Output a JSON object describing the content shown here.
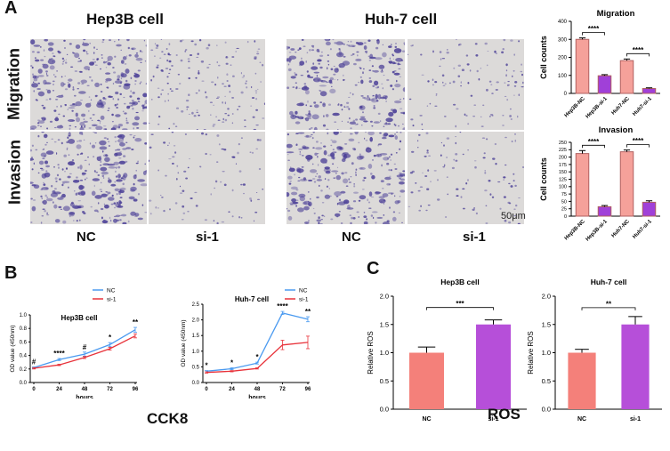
{
  "panels": {
    "a": "A",
    "b": "B",
    "c": "C"
  },
  "panelA": {
    "hep3b_title": "Hep3B cell",
    "huh7_title": "Huh-7 cell",
    "row_migration": "Migration",
    "row_invasion": "Invasion",
    "nc": "NC",
    "si1": "si-1",
    "scale": "50μm"
  },
  "captions": {
    "cck8": "CCK8",
    "ros": "ROS"
  },
  "colors": {
    "nc_bar": "#f5a19a",
    "si_bar": "#a040d8",
    "nc_line": "#4a9af0",
    "si_line": "#e8333b",
    "ros_nc": "#f4807a",
    "ros_si": "#b64fd9",
    "stain": "#4b3f97"
  },
  "chart_data": [
    {
      "type": "bar",
      "title": "Migration",
      "ylabel": "Cell counts",
      "categories": [
        "Hep3B-NC",
        "Hep3B-si-1",
        "Huh7-NC",
        "Huh7-si-1"
      ],
      "values": [
        300,
        98,
        182,
        27
      ],
      "errors": [
        8,
        6,
        9,
        4
      ],
      "yticks": [
        "0",
        "100",
        "200",
        "300",
        "400"
      ],
      "ylim": [
        0,
        400
      ],
      "significance": [
        "****",
        "****"
      ]
    },
    {
      "type": "bar",
      "title": "Invasion",
      "ylabel": "Cell counts",
      "categories": [
        "Hep3B-NC",
        "Hep3B-si-1",
        "Huh7-NC",
        "Huh7-si-1"
      ],
      "values": [
        212,
        32,
        218,
        47
      ],
      "errors": [
        10,
        4,
        6,
        5
      ],
      "yticks": [
        "0",
        "25",
        "50",
        "75",
        "100",
        "125",
        "150",
        "175",
        "200",
        "225",
        "250"
      ],
      "ylim": [
        0,
        250
      ],
      "significance": [
        "****",
        "****"
      ]
    },
    {
      "type": "line",
      "title": "Hep3B cell",
      "xlabel": "hours",
      "ylabel": "OD value (450nm)",
      "x": [
        0,
        24,
        48,
        72,
        96
      ],
      "xticks": [
        "0",
        "24",
        "48",
        "72",
        "96"
      ],
      "yticks": [
        "0.0",
        "0.2",
        "0.4",
        "0.6",
        "0.8",
        "1.0"
      ],
      "ylim": [
        0,
        1.0
      ],
      "legend": [
        "NC",
        "si-1"
      ],
      "series": [
        {
          "name": "NC",
          "values": [
            0.22,
            0.34,
            0.42,
            0.56,
            0.78
          ],
          "errors": [
            0.01,
            0.015,
            0.03,
            0.03,
            0.035
          ]
        },
        {
          "name": "si-1",
          "values": [
            0.21,
            0.26,
            0.37,
            0.5,
            0.69
          ],
          "errors": [
            0.01,
            0.01,
            0.015,
            0.02,
            0.03
          ]
        }
      ],
      "annotations": [
        "#",
        "****",
        "#",
        "*",
        "**"
      ]
    },
    {
      "type": "line",
      "title": "Huh-7 cell",
      "xlabel": "hours",
      "ylabel": "OD value (450nm)",
      "x": [
        0,
        24,
        48,
        72,
        96
      ],
      "xticks": [
        "0",
        "24",
        "48",
        "72",
        "96"
      ],
      "yticks": [
        "0.0",
        "0.5",
        "1.0",
        "1.5",
        "2.0",
        "2.5"
      ],
      "ylim": [
        0,
        2.5
      ],
      "legend": [
        "NC",
        "si-1"
      ],
      "series": [
        {
          "name": "NC",
          "values": [
            0.36,
            0.44,
            0.62,
            2.22,
            2.02
          ],
          "errors": [
            0.02,
            0.03,
            0.03,
            0.05,
            0.08
          ]
        },
        {
          "name": "si-1",
          "values": [
            0.32,
            0.36,
            0.45,
            1.2,
            1.28
          ],
          "errors": [
            0.02,
            0.02,
            0.02,
            0.15,
            0.2
          ]
        }
      ],
      "annotations": [
        "*",
        "*",
        "*",
        "****",
        "**"
      ]
    },
    {
      "type": "bar",
      "title": "Hep3B cell",
      "ylabel": "Relative ROS",
      "categories": [
        "NC",
        "si-1"
      ],
      "values": [
        1.0,
        1.5
      ],
      "errors": [
        0.1,
        0.08
      ],
      "yticks": [
        "0.0",
        "0.5",
        "1.0",
        "1.5",
        "2.0"
      ],
      "ylim": [
        0,
        2.0
      ],
      "significance": [
        "***"
      ]
    },
    {
      "type": "bar",
      "title": "Huh-7 cell",
      "ylabel": "Relative ROS",
      "categories": [
        "NC",
        "si-1"
      ],
      "values": [
        1.0,
        1.5
      ],
      "errors": [
        0.06,
        0.14
      ],
      "yticks": [
        "0.0",
        "0.5",
        "1.0",
        "1.5",
        "2.0"
      ],
      "ylim": [
        0,
        2.0
      ],
      "significance": [
        "**"
      ]
    }
  ]
}
